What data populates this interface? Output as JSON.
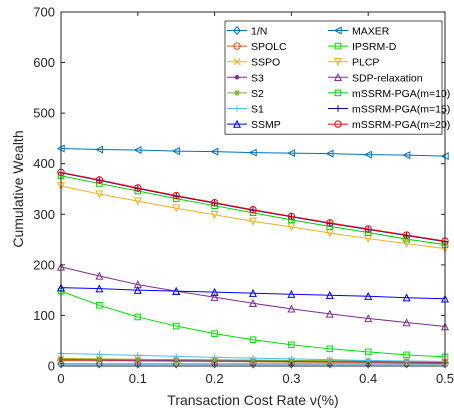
{
  "chart_data": {
    "type": "line",
    "xlabel": "Transaction Cost Rate ν(%)",
    "ylabel": "Cumulative Wealth",
    "xlim": [
      0,
      0.5
    ],
    "ylim": [
      0,
      700
    ],
    "xticks": [
      0,
      0.1,
      0.2,
      0.3,
      0.4,
      0.5
    ],
    "xtick_labels": [
      "0",
      "0.1",
      "0.2",
      "0.3",
      "0.4",
      "0.5"
    ],
    "yticks": [
      0,
      100,
      200,
      300,
      400,
      500,
      600,
      700
    ],
    "ytick_labels": [
      "0",
      "100",
      "200",
      "300",
      "400",
      "500",
      "600",
      "700"
    ],
    "grid": false,
    "legend_position": "top-right",
    "x": [
      0,
      0.05,
      0.1,
      0.15,
      0.2,
      0.25,
      0.3,
      0.35,
      0.4,
      0.45,
      0.5
    ],
    "series": [
      {
        "name": "1/N",
        "color": "#0072BD",
        "marker": "diamond",
        "values": [
          4,
          4,
          4,
          4,
          4,
          4,
          4,
          4,
          4,
          4,
          4
        ]
      },
      {
        "name": "MAXER",
        "color": "#0072BD",
        "marker": "triangle-left",
        "values": [
          430,
          428,
          427,
          425,
          424,
          422,
          421,
          420,
          418,
          417,
          415
        ]
      },
      {
        "name": "SPOLC",
        "color": "#D95319",
        "marker": "circle",
        "values": [
          11,
          10.5,
          10,
          9.5,
          9,
          8.5,
          8,
          7.5,
          7,
          6.5,
          6
        ]
      },
      {
        "name": "IPSRM-D",
        "color": "#00E000",
        "marker": "square",
        "values": [
          148,
          120,
          97,
          79,
          64,
          52,
          42,
          34,
          28,
          22,
          18
        ]
      },
      {
        "name": "SSPO",
        "color": "#EDB120",
        "marker": "x",
        "values": [
          15,
          14,
          13,
          12.5,
          12,
          11.5,
          11,
          10.5,
          10,
          9.5,
          9
        ]
      },
      {
        "name": "PLCP",
        "color": "#EDB120",
        "marker": "triangle-down",
        "values": [
          356,
          340,
          326,
          312,
          299,
          286,
          275,
          263,
          252,
          242,
          232
        ]
      },
      {
        "name": "S3",
        "color": "#7E2F8E",
        "marker": "dot",
        "values": [
          13,
          12,
          11.5,
          11,
          10.5,
          10,
          9.5,
          9,
          8.5,
          8,
          7.5
        ]
      },
      {
        "name": "SDP-relaxation",
        "color": "#7E2F8E",
        "marker": "triangle-up",
        "values": [
          196,
          178,
          161,
          148,
          136,
          124,
          113,
          103,
          94,
          86,
          78
        ]
      },
      {
        "name": "S2",
        "color": "#77AC30",
        "marker": "star",
        "values": [
          14,
          13.5,
          13,
          12.5,
          12,
          11.5,
          11,
          10.5,
          10,
          9.5,
          9
        ]
      },
      {
        "name": "mSSRM-PGA(m=10)",
        "color": "#00D000",
        "marker": "square",
        "values": [
          376,
          361,
          346,
          331,
          317,
          303,
          289,
          276,
          264,
          251,
          240
        ]
      },
      {
        "name": "S1",
        "color": "#4DBEEE",
        "marker": "plus",
        "values": [
          25,
          23,
          21,
          19,
          17,
          15.5,
          14,
          12.5,
          11,
          10,
          9
        ]
      },
      {
        "name": "mSSRM-PGA(m=15)",
        "color": "#0000A0",
        "marker": "plus",
        "values": [
          382,
          367,
          351,
          336,
          322,
          308,
          295,
          282,
          270,
          258,
          246
        ]
      },
      {
        "name": "SSMP",
        "color": "#0000FF",
        "marker": "triangle-up",
        "values": [
          155,
          153,
          150,
          148,
          146,
          144,
          142,
          140,
          138,
          135,
          133
        ]
      },
      {
        "name": "mSSRM-PGA(m=20)",
        "color": "#FF0000",
        "marker": "circle",
        "values": [
          383,
          368,
          352,
          337,
          323,
          309,
          296,
          283,
          271,
          259,
          247
        ]
      }
    ]
  }
}
